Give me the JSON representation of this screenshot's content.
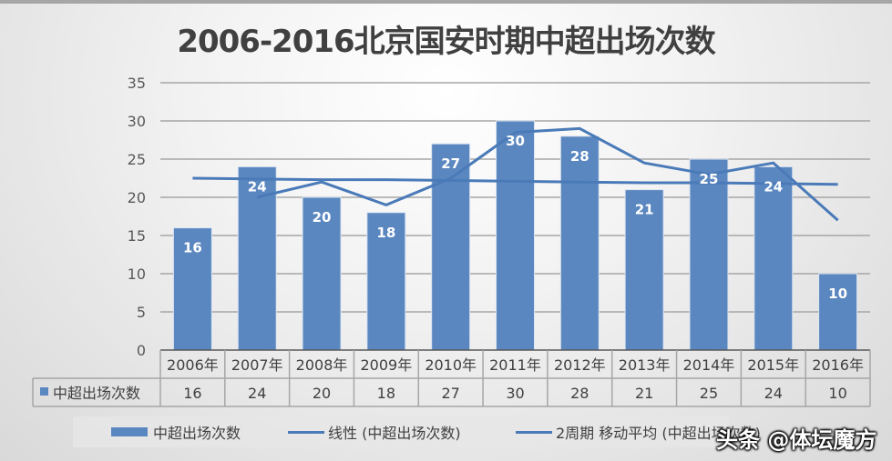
{
  "title": "2006-2016北京国安时期中超出场次数",
  "chart_data": {
    "type": "bar",
    "title": "2006-2016北京国安时期中超出场次数",
    "xlabel": "",
    "ylabel": "",
    "ylim": [
      0,
      35
    ],
    "yticks": [
      0,
      5,
      10,
      15,
      20,
      25,
      30,
      35
    ],
    "grid": true,
    "categories": [
      "2006年",
      "2007年",
      "2008年",
      "2009年",
      "2010年",
      "2011年",
      "2012年",
      "2013年",
      "2014年",
      "2015年",
      "2016年"
    ],
    "series": [
      {
        "name": "中超出场次数",
        "type": "bar",
        "values": [
          16,
          24,
          20,
          18,
          27,
          30,
          28,
          21,
          25,
          24,
          10
        ]
      },
      {
        "name": "线性 (中超出场次数)",
        "type": "line",
        "values": [
          22.5,
          22.4,
          22.3,
          22.3,
          22.2,
          22.1,
          22.0,
          21.9,
          21.9,
          21.8,
          21.7
        ]
      },
      {
        "name": "2周期 移动平均 (中超出场次数)",
        "type": "line",
        "values": [
          null,
          20,
          22,
          19,
          22.5,
          28.5,
          29,
          24.5,
          23,
          24.5,
          17
        ]
      }
    ],
    "data_table": true,
    "legend_position": "bottom",
    "colors": {
      "bar": "#5b87c0",
      "line": "#4a7ab8"
    }
  },
  "table": {
    "row_label": "中超出场次数"
  },
  "legend": {
    "items": [
      "中超出场次数",
      "线性 (中超出场次数)",
      "2周期 移动平均 (中超出场次数)"
    ]
  },
  "watermark": "头条 @体坛魔方"
}
